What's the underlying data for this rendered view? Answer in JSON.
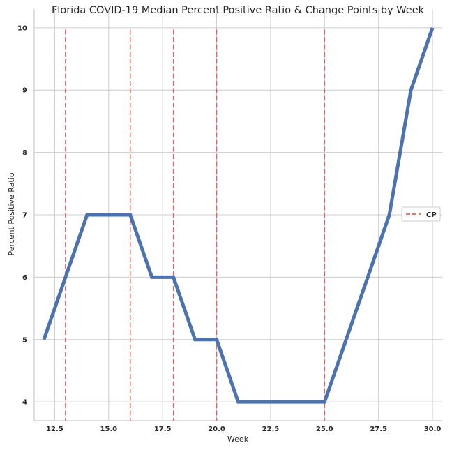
{
  "chart_data": {
    "type": "line",
    "title": "Florida COVID-19 Median Percent Positive Ratio & Change Points by Week",
    "xlabel": "Week",
    "ylabel": "Percent Positive Ratio",
    "xlim": [
      11.55,
      30.45
    ],
    "ylim": [
      3.7,
      10.3
    ],
    "xticks": [
      12.5,
      15.0,
      17.5,
      20.0,
      22.5,
      25.0,
      27.5,
      30.0
    ],
    "xtick_labels": [
      "12.5",
      "15.0",
      "17.5",
      "20.0",
      "22.5",
      "25.0",
      "27.5",
      "30.0"
    ],
    "yticks": [
      4,
      5,
      6,
      7,
      8,
      9,
      10
    ],
    "ytick_labels": [
      "4",
      "5",
      "6",
      "7",
      "8",
      "9",
      "10"
    ],
    "grid": true,
    "series": [
      {
        "x": [
          12,
          13,
          14,
          15,
          16,
          17,
          18,
          19,
          20,
          21,
          22,
          23,
          24,
          25,
          26,
          27,
          28,
          29,
          30
        ],
        "y": [
          5,
          6,
          7,
          7,
          7,
          6,
          6,
          5,
          5,
          4,
          4,
          4,
          4,
          4,
          5,
          6,
          7,
          9,
          10
        ],
        "color": "#4c72b0"
      }
    ],
    "change_points": {
      "name": "CP",
      "x": [
        13,
        16,
        18,
        20,
        25
      ],
      "color": "#dd8452",
      "line_color": "#d46a6a",
      "style": "dashed"
    },
    "legend": {
      "placement": "right",
      "entries": [
        "CP"
      ]
    }
  }
}
